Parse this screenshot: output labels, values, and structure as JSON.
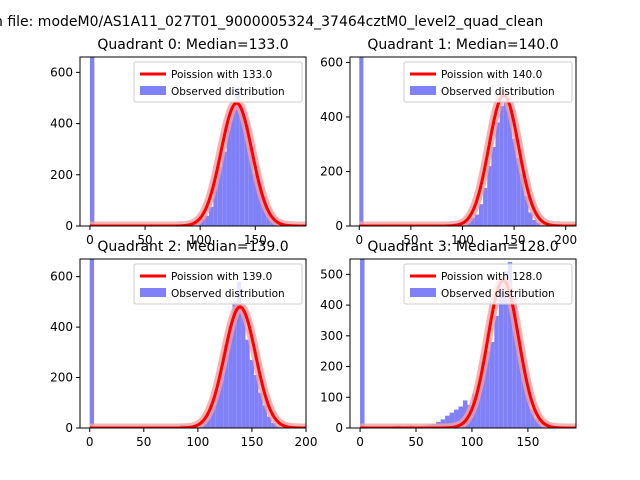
{
  "figure": {
    "suptitle": "n file: modeM0/AS1A11_027T01_9000005324_37464cztM0_level2_quad_clean"
  },
  "colors": {
    "bars": "#8080f8",
    "fit": "#ff0000",
    "fit_band": "#f4a0a0"
  },
  "chart_data": [
    {
      "type": "bar",
      "title": "Quadrant 0: Median=133.0",
      "xlim": [
        -9,
        196
      ],
      "ylim": [
        0,
        660
      ],
      "xticks": [
        0,
        50,
        100,
        150
      ],
      "yticks": [
        0,
        200,
        400,
        600
      ],
      "legend_position": "top-right",
      "series": [
        {
          "name": "Poission with 133.0",
          "kind": "line",
          "mean": 133,
          "peak": 480
        },
        {
          "name": "Observed distribution",
          "kind": "hist",
          "bin_width": 4,
          "bins": [
            [
              0,
              660
            ],
            [
              4,
              2
            ],
            [
              8,
              2
            ],
            [
              12,
              2
            ],
            [
              16,
              2
            ],
            [
              20,
              2
            ],
            [
              24,
              2
            ],
            [
              28,
              2
            ],
            [
              32,
              2
            ],
            [
              36,
              2
            ],
            [
              40,
              2
            ],
            [
              44,
              2
            ],
            [
              48,
              2
            ],
            [
              52,
              2
            ],
            [
              56,
              2
            ],
            [
              60,
              2
            ],
            [
              64,
              2
            ],
            [
              68,
              2
            ],
            [
              72,
              2
            ],
            [
              76,
              3
            ],
            [
              80,
              4
            ],
            [
              84,
              6
            ],
            [
              88,
              8
            ],
            [
              92,
              14
            ],
            [
              96,
              18
            ],
            [
              100,
              28
            ],
            [
              104,
              40
            ],
            [
              108,
              75
            ],
            [
              112,
              175
            ],
            [
              116,
              230
            ],
            [
              120,
              290
            ],
            [
              124,
              410
            ],
            [
              128,
              465
            ],
            [
              132,
              540
            ],
            [
              136,
              460
            ],
            [
              140,
              395
            ],
            [
              144,
              310
            ],
            [
              148,
              205
            ],
            [
              152,
              170
            ],
            [
              156,
              115
            ],
            [
              160,
              55
            ],
            [
              164,
              26
            ],
            [
              168,
              15
            ],
            [
              172,
              8
            ],
            [
              176,
              5
            ]
          ]
        }
      ]
    },
    {
      "type": "bar",
      "title": "Quadrant 1: Median=140.0",
      "xlim": [
        -9,
        210
      ],
      "ylim": [
        0,
        620
      ],
      "xticks": [
        0,
        50,
        100,
        150,
        200
      ],
      "yticks": [
        0,
        200,
        400,
        600
      ],
      "legend_position": "top-right",
      "series": [
        {
          "name": "Poission with 140.0",
          "kind": "line",
          "mean": 140,
          "peak": 480
        },
        {
          "name": "Observed distribution",
          "kind": "hist",
          "bin_width": 4,
          "bins": [
            [
              0,
              620
            ],
            [
              4,
              2
            ],
            [
              8,
              2
            ],
            [
              12,
              2
            ],
            [
              16,
              2
            ],
            [
              20,
              2
            ],
            [
              24,
              2
            ],
            [
              28,
              2
            ],
            [
              32,
              2
            ],
            [
              36,
              2
            ],
            [
              40,
              2
            ],
            [
              44,
              2
            ],
            [
              48,
              2
            ],
            [
              52,
              2
            ],
            [
              56,
              2
            ],
            [
              60,
              2
            ],
            [
              64,
              2
            ],
            [
              68,
              2
            ],
            [
              72,
              2
            ],
            [
              76,
              2
            ],
            [
              80,
              3
            ],
            [
              84,
              4
            ],
            [
              88,
              6
            ],
            [
              92,
              10
            ],
            [
              96,
              12
            ],
            [
              100,
              14
            ],
            [
              104,
              22
            ],
            [
              108,
              30
            ],
            [
              112,
              42
            ],
            [
              116,
              80
            ],
            [
              120,
              140
            ],
            [
              124,
              220
            ],
            [
              128,
              290
            ],
            [
              132,
              380
            ],
            [
              136,
              440
            ],
            [
              140,
              470
            ],
            [
              144,
              430
            ],
            [
              148,
              320
            ],
            [
              152,
              250
            ],
            [
              156,
              190
            ],
            [
              160,
              110
            ],
            [
              164,
              50
            ],
            [
              168,
              22
            ],
            [
              172,
              12
            ],
            [
              176,
              6
            ]
          ]
        }
      ]
    },
    {
      "type": "bar",
      "title": "Quadrant 2: Median=139.0",
      "xlim": [
        -9,
        200
      ],
      "ylim": [
        0,
        670
      ],
      "xticks": [
        0,
        50,
        100,
        150,
        200
      ],
      "yticks": [
        0,
        200,
        400,
        600
      ],
      "legend_position": "top-right",
      "series": [
        {
          "name": "Poission with 139.0",
          "kind": "line",
          "mean": 139,
          "peak": 480
        },
        {
          "name": "Observed distribution",
          "kind": "hist",
          "bin_width": 4,
          "bins": [
            [
              0,
              670
            ],
            [
              4,
              2
            ],
            [
              8,
              2
            ],
            [
              12,
              2
            ],
            [
              16,
              2
            ],
            [
              20,
              2
            ],
            [
              24,
              2
            ],
            [
              28,
              2
            ],
            [
              32,
              2
            ],
            [
              36,
              2
            ],
            [
              40,
              2
            ],
            [
              44,
              2
            ],
            [
              48,
              2
            ],
            [
              52,
              2
            ],
            [
              56,
              2
            ],
            [
              60,
              2
            ],
            [
              64,
              2
            ],
            [
              68,
              2
            ],
            [
              72,
              2
            ],
            [
              76,
              3
            ],
            [
              80,
              6
            ],
            [
              84,
              12
            ],
            [
              88,
              10
            ],
            [
              92,
              8
            ],
            [
              96,
              10
            ],
            [
              100,
              14
            ],
            [
              104,
              28
            ],
            [
              108,
              50
            ],
            [
              112,
              90
            ],
            [
              116,
              150
            ],
            [
              120,
              220
            ],
            [
              124,
              330
            ],
            [
              128,
              405
            ],
            [
              132,
              500
            ],
            [
              136,
              580
            ],
            [
              140,
              470
            ],
            [
              144,
              350
            ],
            [
              148,
              270
            ],
            [
              152,
              210
            ],
            [
              156,
              140
            ],
            [
              160,
              90
            ],
            [
              164,
              45
            ],
            [
              168,
              20
            ],
            [
              172,
              10
            ],
            [
              176,
              5
            ]
          ]
        }
      ]
    },
    {
      "type": "bar",
      "title": "Quadrant 3: Median=128.0",
      "xlim": [
        -9,
        193
      ],
      "ylim": [
        0,
        550
      ],
      "xticks": [
        0,
        50,
        100,
        150
      ],
      "yticks": [
        0,
        100,
        200,
        300,
        400,
        500
      ],
      "legend_position": "top-right",
      "series": [
        {
          "name": "Poission with 128.0",
          "kind": "line",
          "mean": 128,
          "peak": 480
        },
        {
          "name": "Observed distribution",
          "kind": "hist",
          "bin_width": 4,
          "bins": [
            [
              0,
              550
            ],
            [
              4,
              2
            ],
            [
              8,
              2
            ],
            [
              12,
              2
            ],
            [
              16,
              2
            ],
            [
              20,
              2
            ],
            [
              24,
              3
            ],
            [
              28,
              6
            ],
            [
              32,
              8
            ],
            [
              36,
              5
            ],
            [
              40,
              6
            ],
            [
              44,
              8
            ],
            [
              48,
              4
            ],
            [
              52,
              6
            ],
            [
              56,
              8
            ],
            [
              60,
              10
            ],
            [
              64,
              14
            ],
            [
              68,
              20
            ],
            [
              72,
              28
            ],
            [
              76,
              40
            ],
            [
              80,
              50
            ],
            [
              84,
              60
            ],
            [
              88,
              70
            ],
            [
              92,
              90
            ],
            [
              96,
              75
            ],
            [
              100,
              110
            ],
            [
              104,
              140
            ],
            [
              108,
              215
            ],
            [
              112,
              250
            ],
            [
              116,
              280
            ],
            [
              120,
              365
            ],
            [
              124,
              470
            ],
            [
              128,
              510
            ],
            [
              132,
              540
            ],
            [
              136,
              430
            ],
            [
              140,
              290
            ],
            [
              144,
              205
            ],
            [
              148,
              135
            ],
            [
              152,
              60
            ],
            [
              156,
              30
            ],
            [
              160,
              18
            ],
            [
              164,
              8
            ],
            [
              168,
              4
            ]
          ]
        }
      ]
    }
  ]
}
